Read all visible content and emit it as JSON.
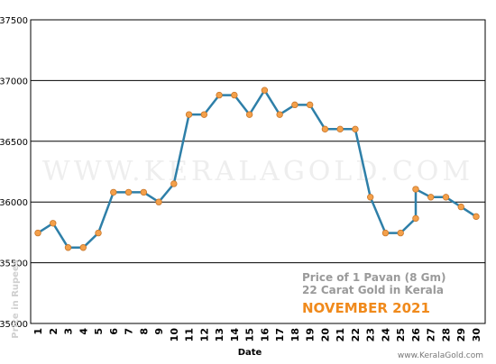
{
  "chart_data": {
    "type": "line",
    "x": [
      1,
      2,
      3,
      4,
      5,
      6,
      7,
      8,
      9,
      10,
      11,
      12,
      13,
      14,
      15,
      16,
      17,
      18,
      19,
      20,
      21,
      22,
      23,
      24,
      25,
      26,
      27,
      28,
      29,
      30
    ],
    "series": [
      {
        "values": [
          [
            1,
            35745
          ],
          [
            2,
            35825
          ],
          [
            3,
            35625
          ],
          [
            4,
            35625
          ],
          [
            5,
            35745
          ],
          [
            6,
            36080
          ],
          [
            7,
            36080
          ],
          [
            8,
            36080
          ],
          [
            9,
            36000
          ],
          [
            10,
            36150
          ],
          [
            11,
            36720
          ],
          [
            12,
            36720
          ],
          [
            13,
            36880
          ],
          [
            14,
            36880
          ],
          [
            15,
            36720
          ],
          [
            16,
            36920
          ],
          [
            17,
            36720
          ],
          [
            18,
            36800
          ],
          [
            19,
            36800
          ],
          [
            20,
            36600
          ],
          [
            21,
            36600
          ],
          [
            22,
            36600
          ],
          [
            23,
            36040
          ],
          [
            24,
            35745
          ],
          [
            25,
            35745
          ],
          [
            26,
            35865
          ],
          [
            26,
            36105
          ],
          [
            27,
            36040
          ],
          [
            28,
            36040
          ],
          [
            29,
            35960
          ],
          [
            30,
            35880
          ]
        ]
      }
    ],
    "xlabel": "Date",
    "ylabel": "Price in Rupees",
    "ylim": [
      35000,
      37500
    ],
    "xlim": [
      1,
      30
    ],
    "y_ticks": [
      35000,
      35500,
      36000,
      36500,
      37000,
      37500
    ],
    "grid": "horizontal",
    "watermark": "WWW.KERALAGOLD.COM",
    "annotation": {
      "line1": "Price of 1 Pavan (8 Gm)",
      "line2": "22 Carat Gold in Kerala",
      "line3": "NOVEMBER 2021"
    },
    "credit": "www.KeralaGold.com",
    "colors": {
      "line": "#2e7fa8",
      "marker": "#f4a04a",
      "marker_stroke": "#c8762a",
      "accent": "#f08a1c"
    }
  }
}
